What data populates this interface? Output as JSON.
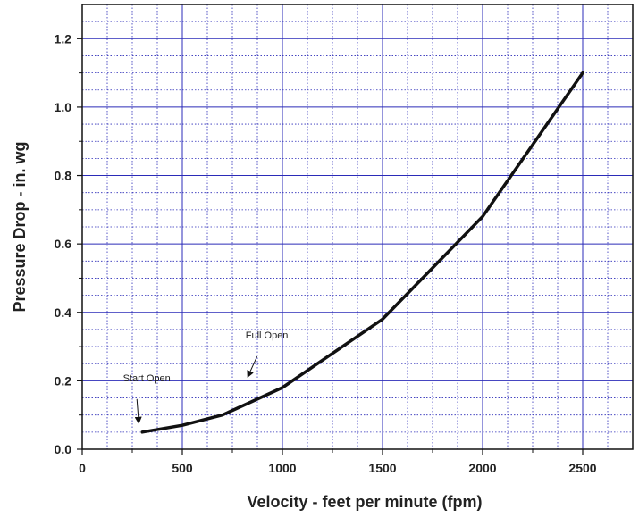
{
  "chart_data": {
    "type": "line",
    "xlabel": "Velocity - feet per minute (fpm)",
    "ylabel": "Pressure Drop - in. wg",
    "xlim": [
      0,
      2750
    ],
    "ylim": [
      0,
      1.3
    ],
    "x_ticks": [
      "0",
      "500",
      "1000",
      "1500",
      "2000",
      "2500"
    ],
    "y_ticks": [
      "0.0",
      "0.2",
      "0.4",
      "0.6",
      "0.8",
      "1.0",
      "1.2"
    ],
    "grid": true,
    "line_color": "#111111",
    "grid_color": "#2b2bb8",
    "series": [
      {
        "x": [
          300,
          500,
          700,
          850,
          1000,
          1250,
          1500,
          1750,
          2000,
          2250,
          2500
        ],
        "y": [
          0.05,
          0.07,
          0.1,
          0.14,
          0.18,
          0.28,
          0.38,
          0.53,
          0.68,
          0.89,
          1.1
        ]
      }
    ],
    "annotations": [
      {
        "text": "Start Open",
        "x": 300,
        "y": 0.05
      },
      {
        "text": "Full Open",
        "x": 900,
        "y": 0.19
      }
    ]
  }
}
